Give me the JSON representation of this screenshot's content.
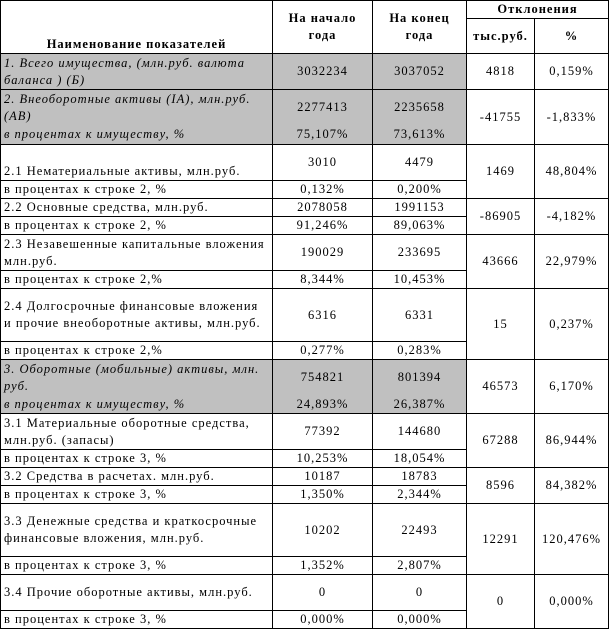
{
  "header": {
    "name": "Наименование показателей",
    "start": "На начало года",
    "end": "На конец года",
    "deviations": "Отклонения",
    "thous": "тыс.руб.",
    "pct": "%"
  },
  "rows": [
    {
      "label": "1. Всего имущества, (млн.руб. валюта баланса ) (Б)",
      "start": "3032234",
      "end": "3037052",
      "dev": "4818",
      "devpct": "0,159%"
    },
    {
      "label1": "2. Внеоборотные активы (IA), млн.руб.(AB)",
      "label2": "в процентах к имуществу, %",
      "start1": "2277413",
      "end1": "2235658",
      "start2": "75,107%",
      "end2": "73,613%",
      "dev": "-41755",
      "devpct": "-1,833%"
    },
    {
      "label1": "2.1 Нематериальные активы, млн.руб.",
      "label2": "в процентах к строке 2, %",
      "start1": "3010",
      "end1": "4479",
      "start2": "0,132%",
      "end2": "0,200%",
      "dev": "1469",
      "devpct": "48,804%"
    },
    {
      "label1": "2.2 Основные средства, млн.руб.",
      "label2": "в процентах к строке 2, %",
      "start1": "2078058",
      "end1": "1991153",
      "start2": "91,246%",
      "end2": "89,063%",
      "dev": "-86905",
      "devpct": "-4,182%"
    },
    {
      "label1": "2.3 Незавешенные капитальные вложения млн.руб.",
      "label2": "в процентах к строке 2,%",
      "start1": "190029",
      "end1": "233695",
      "start2": "8,344%",
      "end2": "10,453%",
      "dev": "43666",
      "devpct": "22,979%"
    },
    {
      "label1": "2.4 Долгосрочные финансовые вложения и прочие внеоборотные активы, млн.руб.",
      "label2": "в процентах к строке 2,%",
      "start1": "6316",
      "end1": "6331",
      "start2": "0,277%",
      "end2": "0,283%",
      "dev": "15",
      "devpct": "0,237%"
    },
    {
      "label1": "3. Оборотные (мобильные) активы, млн. руб.",
      "label2": "в процентах к имуществу, %",
      "start1": "754821",
      "end1": "801394",
      "start2": "24,893%",
      "end2": "26,387%",
      "dev": "46573",
      "devpct": "6,170%"
    },
    {
      "label1": "3.1 Материальные оборотные средства, млн.руб. (запасы)",
      "label2": "в процентах к строке 3, %",
      "start1": "77392",
      "end1": "144680",
      "start2": "10,253%",
      "end2": "18,054%",
      "dev": "67288",
      "devpct": "86,944%"
    },
    {
      "label1": "3.2 Средства в расчетах. млн.руб.",
      "label2": "в процентах к строке 3, %",
      "start1": "10187",
      "end1": "18783",
      "start2": "1,350%",
      "end2": "2,344%",
      "dev": "8596",
      "devpct": "84,382%"
    },
    {
      "label1": "3.3 Денежные средства и краткосрочные финансовые вложения, млн.руб.",
      "label2": "в процентах к строке 3, %",
      "start1": "10202",
      "end1": "22493",
      "start2": "1,352%",
      "end2": "2,807%",
      "dev": "12291",
      "devpct": "120,476%"
    },
    {
      "label1": "3.4 Прочие оборотные активы, млн.руб.",
      "label2": "в процентах к строке 3, %",
      "start1": "0",
      "end1": "0",
      "start2": "0,000%",
      "end2": "0,000%",
      "dev": "0",
      "devpct": "0,000%"
    }
  ]
}
